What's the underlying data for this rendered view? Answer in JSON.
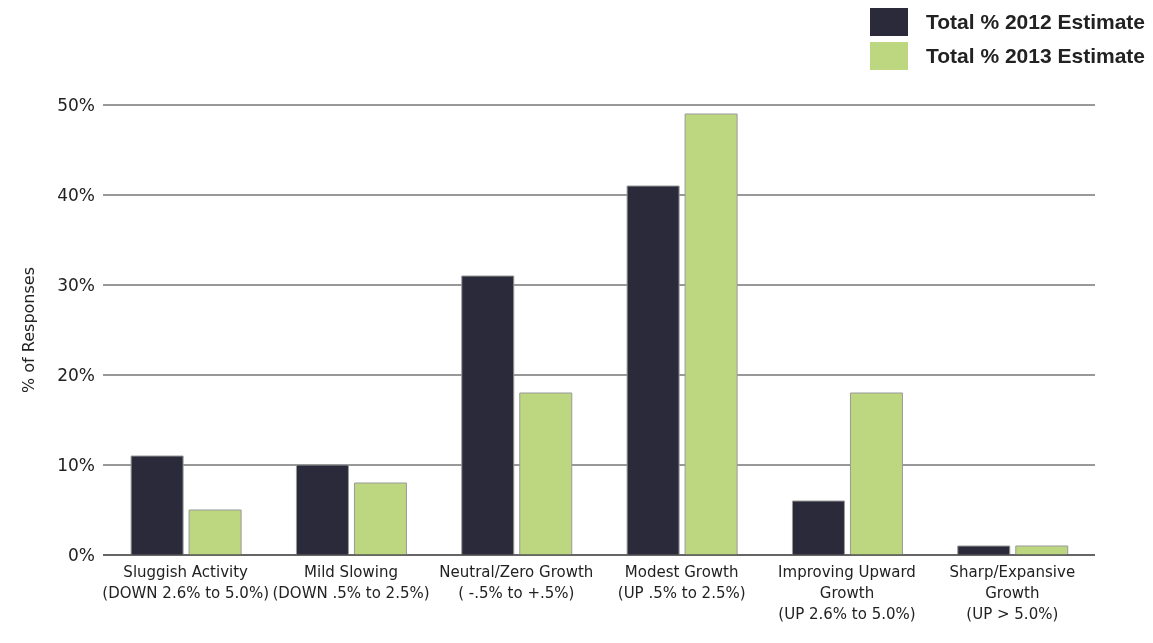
{
  "chart_data": {
    "type": "bar",
    "ylabel": "% of Responses",
    "categories": [
      "Sluggish Activity\n(DOWN 2.6% to 5.0%)",
      "Mild Slowing\n(DOWN .5% to 2.5%)",
      "Neutral/Zero Growth\n( -.5% to +.5%)",
      "Modest Growth\n(UP .5% to 2.5%)",
      "Improving Upward\nGrowth\n(UP 2.6% to 5.0%)",
      "Sharp/Expansive\nGrowth\n(UP > 5.0%)"
    ],
    "series": [
      {
        "name": "Total % 2012 Estimate",
        "color": "#2a2a3a",
        "values": [
          11,
          10,
          31,
          41,
          6,
          1
        ]
      },
      {
        "name": "Total % 2013 Estimate",
        "color": "#bdd781",
        "values": [
          5,
          8,
          18,
          49,
          18,
          1
        ]
      }
    ],
    "ylim": [
      0,
      50
    ],
    "yticks": [
      {
        "value": 0,
        "label": "0%"
      },
      {
        "value": 10,
        "label": "10%"
      },
      {
        "value": 20,
        "label": "20%"
      },
      {
        "value": 30,
        "label": "30%"
      },
      {
        "value": 40,
        "label": "40%"
      },
      {
        "value": 50,
        "label": "50%"
      }
    ],
    "grid": "y",
    "legend": "top right"
  }
}
